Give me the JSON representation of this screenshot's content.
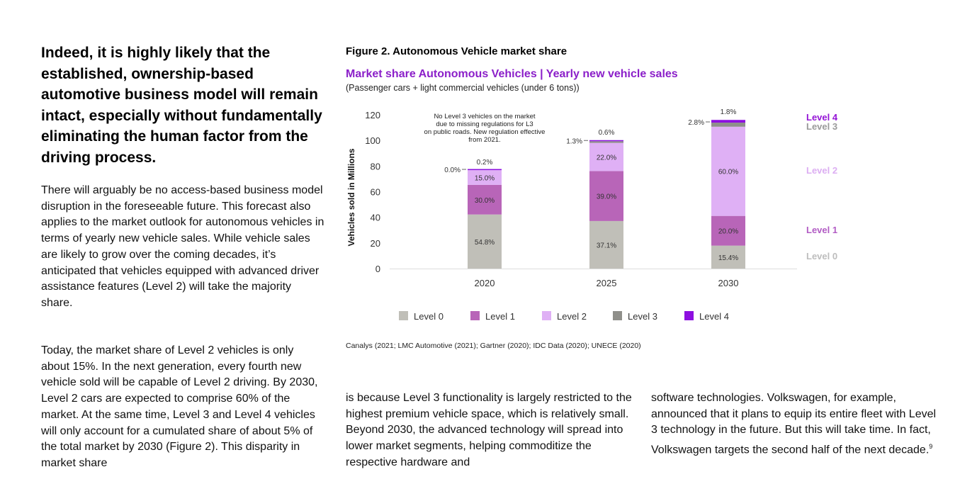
{
  "left": {
    "headline": "Indeed, it is highly likely that the established, ownership-based automotive business model will remain intact, especially without fundamentally eliminating the human factor from the driving process.",
    "paragraph1": "There will arguably be no access-based business model disruption in the foreseeable future. This forecast also applies to the market outlook for autonomous vehicles in terms of yearly new vehicle sales. While vehicle sales are likely to grow over the coming decades, it’s anticipated that vehicles equipped with advanced driver assistance features (Level 2) will take the majority share.",
    "paragraph2": "Today, the market share of Level 2 vehicles is only about 15%. In the next generation, every fourth new vehicle sold will be capable of Level 2 driving. By 2030, Level 2 cars are expected to comprise 60% of the market. At the same time, Level 3 and Level 4 vehicles will only account for a cumulated share of about 5% of the total market by 2030 (Figure 2). This disparity in market share"
  },
  "figure": {
    "label": "Figure 2. Autonomous Vehicle market share",
    "source": "Canalys (2021; LMC Automotive (2021); Gartner (2020); IDC Data (2020); UNECE (2020)"
  },
  "bottom": {
    "column2": "is because Level 3 functionality is largely restricted to the highest premium vehicle space, which is relatively small. Beyond 2030, the advanced technology will spread into lower market segments, helping commoditize the respective hardware and",
    "column3": "software technologies. Volkswagen, for example, announced that it plans to equip its entire fleet with Level 3 technology in the future. But this will take time. In fact, Volkswagen targets the second half of the next decade.",
    "column3_footnote": "9"
  },
  "colors": {
    "Level 0": "#c0bfb8",
    "Level 1": "#b865b8",
    "Level 2": "#dfb0f5",
    "Level 3": "#8f8f8a",
    "Level 4": "#8d0fe0",
    "Level 0 label": "#bdbdbd",
    "Level 1 label": "#b25cc4",
    "Level 2 label": "#dcaef2",
    "Level 3 label": "#9a9a9a",
    "Level 4 label": "#9414d6",
    "title": "#8b1fc9"
  },
  "chart_data": {
    "type": "bar",
    "stacked": true,
    "title": "Market share Autonomous Vehicles | Yearly new vehicle sales",
    "subtitle": "(Passenger cars + light commercial vehicles (under 6 tons))",
    "ylabel": "Vehicles sold in Millions",
    "xlabel": "",
    "ylim": [
      0,
      120
    ],
    "yticks": [
      0,
      20,
      40,
      60,
      80,
      100,
      120
    ],
    "categories": [
      "2020",
      "2025",
      "2030"
    ],
    "totals": [
      77,
      100,
      116
    ],
    "series": [
      {
        "name": "Level 0",
        "share_labels": [
          "54.8%",
          "37.1%",
          "15.4%"
        ],
        "values": [
          42.2,
          37.1,
          17.9
        ]
      },
      {
        "name": "Level 1",
        "share_labels": [
          "30.0%",
          "39.0%",
          "20.0%"
        ],
        "values": [
          23.1,
          39.0,
          23.2
        ]
      },
      {
        "name": "Level 2",
        "share_labels": [
          "15.0%",
          "22.0%",
          "60.0%"
        ],
        "values": [
          11.55,
          22.0,
          69.6
        ]
      },
      {
        "name": "Level 3",
        "share_labels": [
          "0.0%",
          "1.3%",
          "2.8%"
        ],
        "values": [
          0.0,
          1.3,
          3.2
        ]
      },
      {
        "name": "Level 4",
        "share_labels": [
          "0.2%",
          "0.6%",
          "1.8%"
        ],
        "values": [
          0.15,
          0.6,
          2.1
        ]
      }
    ],
    "annotation": "No Level 3 vehicles on the market due to missing regulations for L3 on public roads. New regulation effective from 2021.",
    "legend_order": [
      "Level 0",
      "Level 1",
      "Level 2",
      "Level 3",
      "Level 4"
    ],
    "side_labels_order": [
      "Level 4",
      "Level 3",
      "Level 2",
      "Level 1",
      "Level 0"
    ],
    "legend_position": "bottom"
  }
}
